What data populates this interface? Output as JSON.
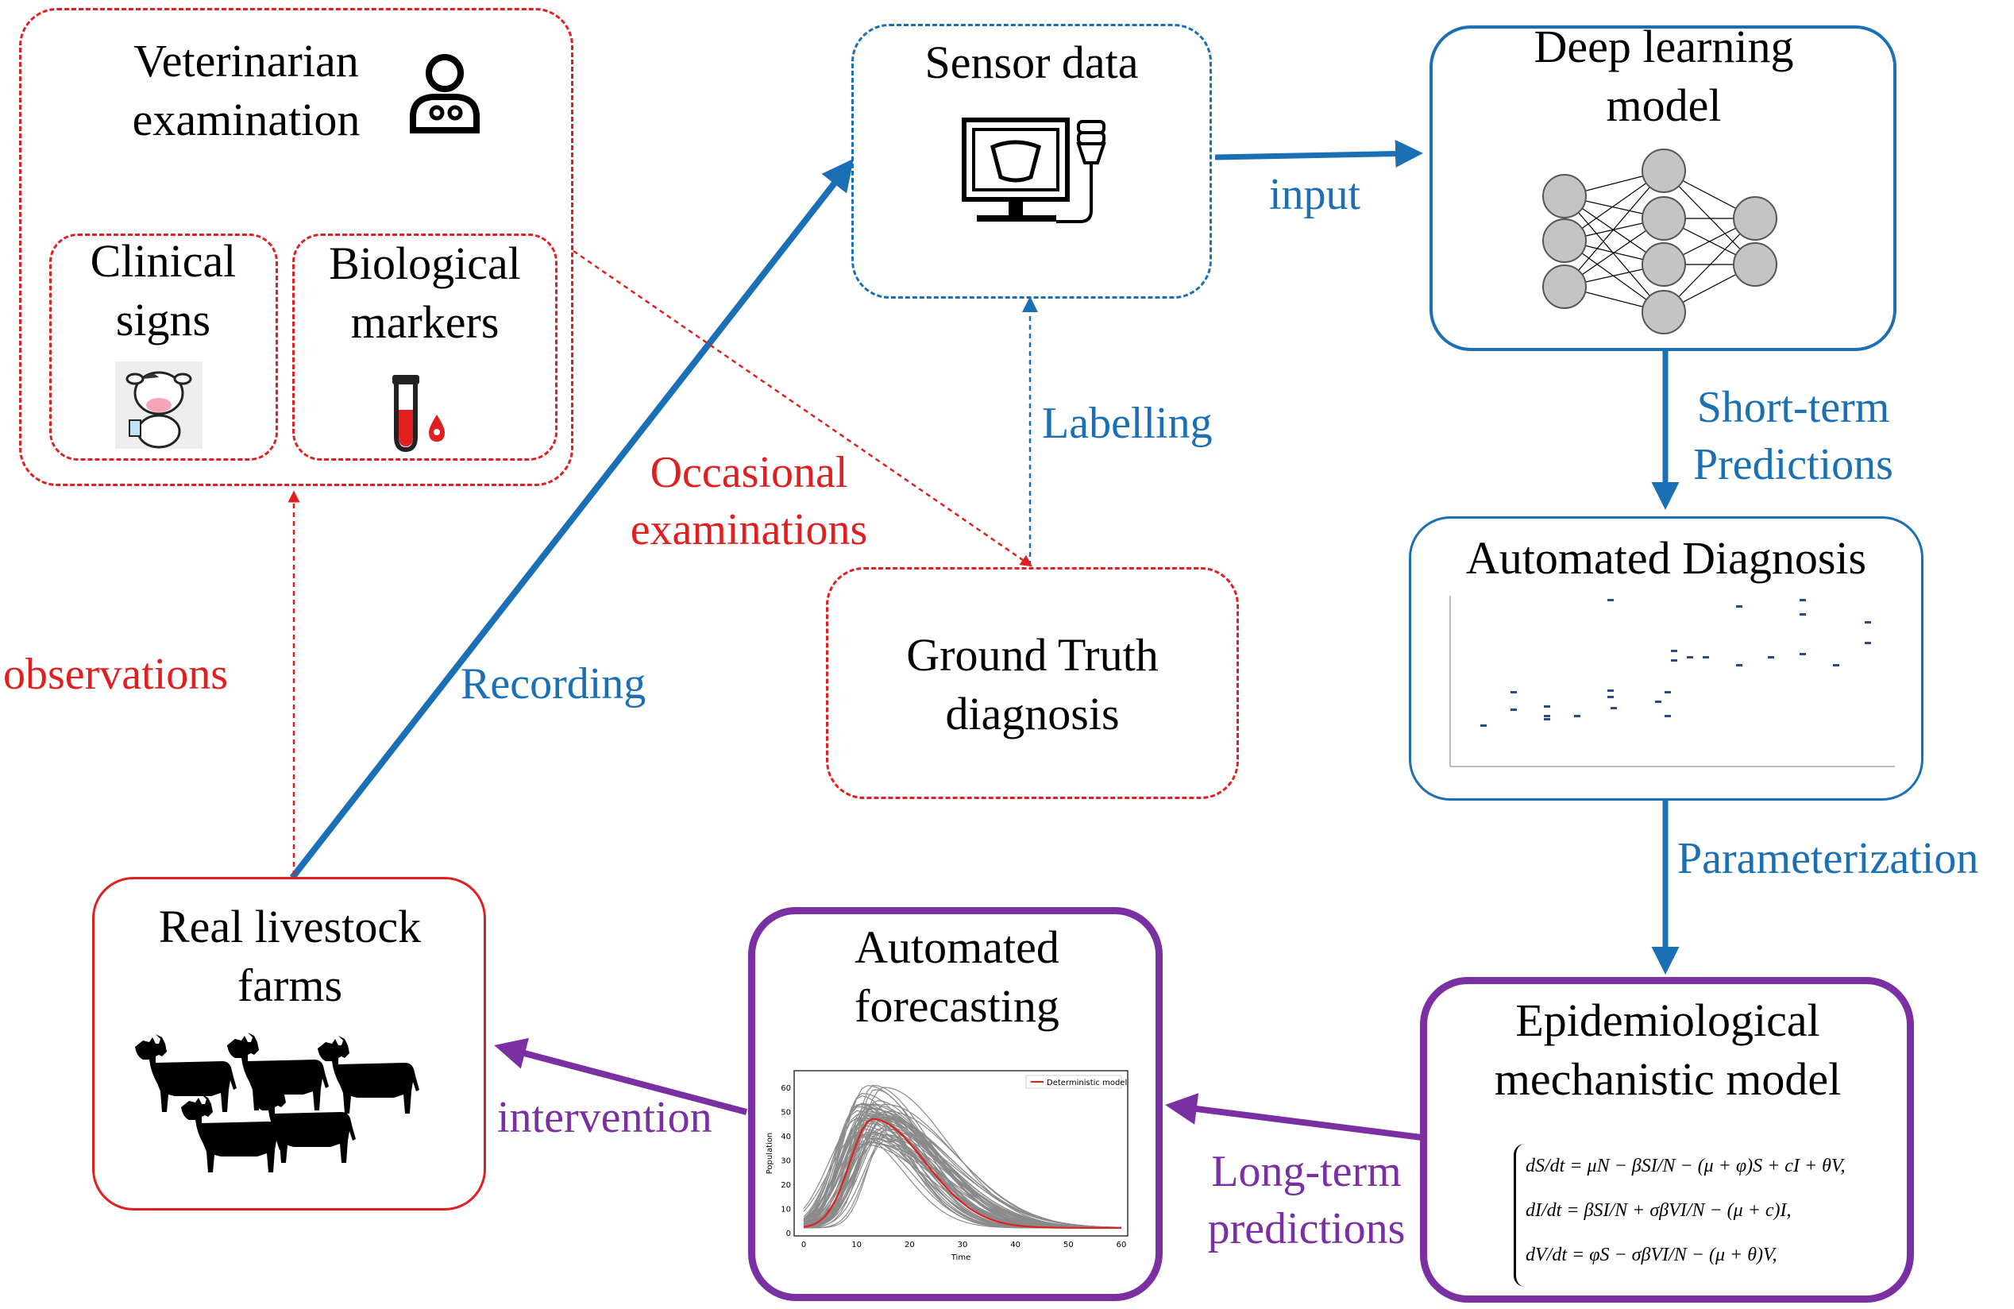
{
  "vet": {
    "title": "Veterinarian examination",
    "clinical_signs": "Clinical signs",
    "biological_markers": "Biological markers"
  },
  "sensor": {
    "title": "Sensor data"
  },
  "dl": {
    "title": "Deep learning model"
  },
  "gt": {
    "title": "Ground Truth diagnosis"
  },
  "auto_diag": {
    "title": "Automated Diagnosis"
  },
  "epi": {
    "title": "Epidemiological mechanistic model",
    "equations": [
      "dS/dt = μN − βSI/N − (μ + φ)S + cI + θV,",
      "dI/dt = βSI/N + σβVI/N − (μ + c)I,",
      "dV/dt = φS − σβVI/N − (μ + θ)V,"
    ]
  },
  "forecast": {
    "title": "Automated forecasting",
    "legend": "Deterministic model",
    "xlabel": "Time",
    "ylabel": "Population",
    "xticks": [
      "0",
      "10",
      "20",
      "30",
      "40",
      "50",
      "60"
    ],
    "yticks": [
      "0",
      "10",
      "20",
      "30",
      "40",
      "50",
      "60"
    ]
  },
  "farms": {
    "title": "Real livestock farms"
  },
  "labels": {
    "input": "input",
    "labelling": "Labelling",
    "short_term": "Short-term Predictions",
    "parameterization": "Parameterization",
    "long_term": "Long-term predictions",
    "intervention": "intervention",
    "observations": "observations",
    "recording": "Recording",
    "occasional": "Occasional examinations"
  },
  "colors": {
    "blue": "#1a6fb5",
    "red": "#e02020",
    "purple": "#7a2fa3"
  }
}
